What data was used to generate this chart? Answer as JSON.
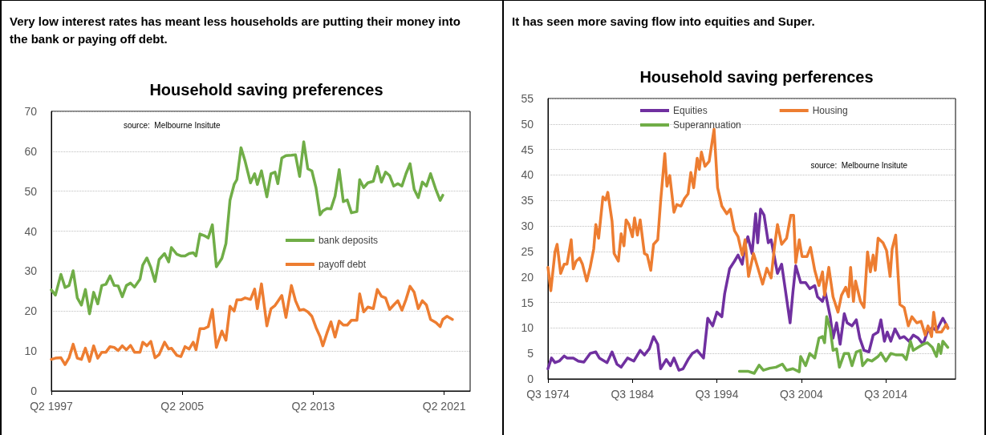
{
  "chart_data": [
    {
      "type": "line",
      "title": "Household saving preferences",
      "annotations": [
        "Very low interest rates has meant less households are putting their money into the bank or paying off debt.",
        "source:  Melbourne Insitute"
      ],
      "xlim": [
        "1997-04",
        "2022-11"
      ],
      "xticks": [
        {
          "value": "1997-04",
          "label": "Q2 1997"
        },
        {
          "value": "2005-04",
          "label": "Q2 2005"
        },
        {
          "value": "2013-04",
          "label": "Q2 2013"
        },
        {
          "value": "2021-04",
          "label": "Q2 2021"
        }
      ],
      "ylim": [
        0,
        70
      ],
      "yticks": [
        0,
        10,
        20,
        30,
        40,
        50,
        60,
        70
      ],
      "grid": "y",
      "legend": "right",
      "series": [
        {
          "name": "bank deposits",
          "color": "#70ad47",
          "x": [
            "1997-04",
            "1997-07",
            "1997-11",
            "1998-02",
            "1998-05",
            "1998-08",
            "1998-11",
            "1999-02",
            "1999-05",
            "1999-08",
            "1999-11",
            "2000-02",
            "2000-05",
            "2000-08",
            "2000-11",
            "2001-02",
            "2001-05",
            "2001-08",
            "2001-11",
            "2002-02",
            "2002-05",
            "2002-09",
            "2002-11",
            "2003-02",
            "2003-05",
            "2003-08",
            "2003-11",
            "2004-03",
            "2004-06",
            "2004-08",
            "2004-12",
            "2005-03",
            "2005-06",
            "2005-09",
            "2005-12",
            "2006-02",
            "2006-05",
            "2006-08",
            "2006-11",
            "2007-02",
            "2007-05",
            "2007-09",
            "2007-12",
            "2008-03",
            "2008-06",
            "2008-08",
            "2008-11",
            "2009-02",
            "2009-06",
            "2009-09",
            "2009-11",
            "2010-02",
            "2010-06",
            "2010-09",
            "2010-12",
            "2011-02",
            "2011-05",
            "2011-08",
            "2011-12",
            "2012-03",
            "2012-06",
            "2012-09",
            "2012-12",
            "2013-03",
            "2013-06",
            "2013-09",
            "2013-11",
            "2014-02",
            "2014-05",
            "2014-08",
            "2014-11",
            "2015-02",
            "2015-05",
            "2015-08",
            "2015-12",
            "2016-02",
            "2016-05",
            "2016-08",
            "2016-12",
            "2017-03",
            "2017-06",
            "2017-09",
            "2017-12",
            "2018-03",
            "2018-06",
            "2018-09",
            "2018-12",
            "2019-03",
            "2019-06",
            "2019-09",
            "2019-12",
            "2020-03",
            "2020-06",
            "2020-10",
            "2021-01",
            "2021-03"
          ],
          "values": [
            25.3,
            24,
            29.2,
            25.9,
            26.4,
            30.1,
            23.3,
            21.5,
            25.4,
            19.3,
            24.7,
            21.8,
            26.4,
            26.7,
            28.8,
            26.4,
            26.3,
            23.6,
            26.4,
            27,
            26,
            28,
            31.5,
            33.3,
            30.9,
            27.4,
            32.9,
            34.4,
            32.3,
            35.9,
            34.2,
            33.8,
            33.8,
            34.4,
            34.6,
            33.8,
            39.3,
            38.9,
            38.3,
            41.6,
            31.1,
            33.2,
            36.9,
            47.8,
            51.7,
            52.9,
            60.9,
            57.5,
            52.1,
            54.4,
            51.7,
            55.1,
            48.6,
            54.4,
            54.8,
            51.9,
            58.3,
            58.9,
            59,
            59.1,
            53.7,
            62.4,
            55.6,
            55.1,
            50.9,
            44.1,
            45.1,
            45.7,
            45.6,
            48.8,
            55.4,
            47.4,
            47.8,
            44.6,
            44.9,
            52.9,
            50.9,
            52.1,
            52.5,
            56.2,
            52.3,
            54.8,
            53.9,
            51.3,
            51.9,
            51.3,
            54.4,
            56.9,
            50.5,
            48.4,
            52.3,
            51.3,
            54.4,
            50.3,
            47.7,
            49
          ]
        },
        {
          "name": "payoff debt",
          "color": "#ed7d31",
          "x": [
            "1997-04",
            "1997-07",
            "1997-11",
            "1998-02",
            "1998-05",
            "1998-08",
            "1998-11",
            "1999-02",
            "1999-05",
            "1999-08",
            "1999-11",
            "2000-02",
            "2000-05",
            "2000-08",
            "2000-11",
            "2001-02",
            "2001-05",
            "2001-08",
            "2001-11",
            "2002-02",
            "2002-05",
            "2002-09",
            "2002-11",
            "2003-02",
            "2003-05",
            "2003-08",
            "2003-11",
            "2004-03",
            "2004-06",
            "2004-08",
            "2004-12",
            "2005-03",
            "2005-06",
            "2005-09",
            "2005-12",
            "2006-02",
            "2006-05",
            "2006-08",
            "2006-11",
            "2007-02",
            "2007-05",
            "2007-09",
            "2007-12",
            "2008-03",
            "2008-06",
            "2008-08",
            "2008-11",
            "2009-02",
            "2009-06",
            "2009-09",
            "2009-11",
            "2010-02",
            "2010-06",
            "2010-09",
            "2010-12",
            "2011-02",
            "2011-05",
            "2011-08",
            "2011-12",
            "2012-03",
            "2012-06",
            "2012-09",
            "2012-12",
            "2013-03",
            "2013-06",
            "2013-09",
            "2013-11",
            "2014-02",
            "2014-05",
            "2014-08",
            "2014-11",
            "2015-02",
            "2015-05",
            "2015-08",
            "2015-12",
            "2016-02",
            "2016-05",
            "2016-08",
            "2016-12",
            "2017-03",
            "2017-06",
            "2017-09",
            "2017-12",
            "2018-03",
            "2018-06",
            "2018-09",
            "2018-12",
            "2019-03",
            "2019-06",
            "2019-09",
            "2019-12",
            "2020-03",
            "2020-06",
            "2020-10",
            "2021-01",
            "2021-03",
            "2021-06",
            "2021-10"
          ],
          "values": [
            7.9,
            8.2,
            8.3,
            6.6,
            8.3,
            11.7,
            8.2,
            7.9,
            10.7,
            7.4,
            11.3,
            8.2,
            9.7,
            9.7,
            11.1,
            10.9,
            10.1,
            11.3,
            10.3,
            11.4,
            9.7,
            9.7,
            12.2,
            11.3,
            12.4,
            8.3,
            9.1,
            12.2,
            10.5,
            10.7,
            8.9,
            8.6,
            11.1,
            10.5,
            12.2,
            10.3,
            15.6,
            15.6,
            16.1,
            20.4,
            10.9,
            15,
            12.7,
            21.2,
            20,
            22.8,
            22.8,
            23.3,
            22.9,
            25.5,
            20.6,
            26.8,
            16.3,
            20.6,
            21.4,
            22.4,
            23.9,
            18.4,
            26.4,
            22.6,
            20.2,
            20.4,
            19.8,
            18.7,
            15.9,
            13.6,
            11.3,
            14.5,
            17.3,
            13.5,
            17.5,
            16.5,
            16.5,
            17.7,
            17.7,
            24.3,
            19.8,
            21,
            20.6,
            25.4,
            23.7,
            23.3,
            20.4,
            21.5,
            22.6,
            20.2,
            22.9,
            26.2,
            24.7,
            20.6,
            22.6,
            21.5,
            17.9,
            17.1,
            16.1,
            17.9,
            18.7,
            17.9
          ]
        }
      ]
    },
    {
      "type": "line",
      "title": "Household saving perferences",
      "annotations": [
        "It has seen more saving flow into equities and Super.",
        "source:  Melbourne Insitute"
      ],
      "xlim": [
        "1974-07",
        "2022-10"
      ],
      "xticks": [
        {
          "value": "1974-07",
          "label": "Q3 1974"
        },
        {
          "value": "1984-07",
          "label": "Q3 1984"
        },
        {
          "value": "1994-07",
          "label": "Q3 1994"
        },
        {
          "value": "2004-07",
          "label": "Q3 2004"
        },
        {
          "value": "2014-07",
          "label": "Q3 2014"
        }
      ],
      "ylim": [
        0,
        55
      ],
      "yticks": [
        0,
        5,
        10,
        15,
        20,
        25,
        30,
        35,
        40,
        45,
        50,
        55
      ],
      "grid": "y",
      "legend": "top",
      "series": [
        {
          "name": "Equities",
          "color": "#7030a0",
          "x": [
            "1974-07",
            "1974-12",
            "1975-05",
            "1975-11",
            "1976-06",
            "1976-10",
            "1977-07",
            "1978-02",
            "1978-10",
            "1979-07",
            "1980-03",
            "1980-08",
            "1981-07",
            "1982-02",
            "1982-09",
            "1983-03",
            "1983-12",
            "1984-09",
            "1985-06",
            "1985-12",
            "1986-07",
            "1987-01",
            "1987-07",
            "1987-11",
            "1988-07",
            "1989-01",
            "1989-06",
            "1990-01",
            "1990-07",
            "1991-02",
            "1991-08",
            "1992-03",
            "1992-12",
            "1993-06",
            "1994-01",
            "1994-07",
            "1995-02",
            "1995-06",
            "1996-01",
            "1996-08",
            "1997-01",
            "1997-07",
            "1997-11",
            "1998-03",
            "1998-09",
            "1999-02",
            "1999-05",
            "1999-09",
            "2000-02",
            "2000-08",
            "2000-12",
            "2001-05",
            "2001-09",
            "2002-03",
            "2002-08",
            "2003-03",
            "2003-07",
            "2003-11",
            "2004-06",
            "2005-01",
            "2005-07",
            "2006-02",
            "2006-06",
            "2007-01",
            "2007-05",
            "2007-12",
            "2008-04",
            "2008-09",
            "2009-02",
            "2009-08",
            "2009-12",
            "2010-07",
            "2011-01",
            "2011-06",
            "2011-12",
            "2012-07",
            "2013-01",
            "2013-08",
            "2013-12",
            "2014-05",
            "2014-09",
            "2015-02",
            "2015-08",
            "2016-03",
            "2016-09",
            "2017-04",
            "2017-10",
            "2018-05",
            "2018-12",
            "2019-06",
            "2020-01",
            "2020-07",
            "2021-04",
            "2021-11"
          ],
          "values": [
            2,
            4.1,
            3.2,
            3.5,
            4.5,
            4.1,
            4.1,
            3.5,
            3.3,
            5,
            5.3,
            4.1,
            3.2,
            5.3,
            2.9,
            2.3,
            4.1,
            3.5,
            5.6,
            4.7,
            5.9,
            8.3,
            6.8,
            2,
            3.8,
            2.6,
            4.1,
            1.7,
            2,
            3.8,
            5,
            5.6,
            4.1,
            11.9,
            10.4,
            13.1,
            12.2,
            16.7,
            21.6,
            23.1,
            24.3,
            22.5,
            26.1,
            27.9,
            24.6,
            32.4,
            26.7,
            33.3,
            32.1,
            26.7,
            27.3,
            23.7,
            20.7,
            22.5,
            17.7,
            11,
            17,
            22.2,
            18.9,
            18.9,
            17.7,
            18.3,
            16.1,
            15.2,
            17,
            12.2,
            8,
            11,
            6.8,
            12.8,
            11,
            10.4,
            11.6,
            8,
            5.6,
            5.3,
            8.6,
            9.2,
            11.6,
            7.4,
            9.2,
            7.4,
            9.8,
            8,
            8.3,
            7.4,
            8.6,
            8,
            6.8,
            9.2,
            10.1,
            9.5,
            11.9,
            10.1
          ]
        },
        {
          "name": "Housing",
          "color": "#ed7d31",
          "x": [
            "1974-07",
            "1974-11",
            "1975-05",
            "1975-08",
            "1976-01",
            "1976-06",
            "1976-10",
            "1977-04",
            "1977-07",
            "1977-11",
            "1978-04",
            "1978-08",
            "1979-02",
            "1979-07",
            "1979-12",
            "1980-03",
            "1980-07",
            "1981-01",
            "1981-05",
            "1981-08",
            "1982-02",
            "1982-05",
            "1982-11",
            "1983-03",
            "1983-07",
            "1983-10",
            "1984-02",
            "1984-07",
            "1984-10",
            "1985-02",
            "1985-06",
            "1985-12",
            "1986-04",
            "1986-09",
            "1987-01",
            "1987-07",
            "1987-11",
            "1988-05",
            "1988-08",
            "1988-12",
            "1989-06",
            "1989-10",
            "1990-04",
            "1990-09",
            "1991-02",
            "1991-06",
            "1991-10",
            "1992-03",
            "1992-06",
            "1992-09",
            "1993-02",
            "1993-08",
            "1994-03",
            "1994-08",
            "1995-02",
            "1995-09",
            "1996-02",
            "1996-08",
            "1997-01",
            "1997-07",
            "1997-11",
            "1998-04",
            "1998-11",
            "1999-05",
            "1999-12",
            "2000-06",
            "2000-12",
            "2001-05",
            "2001-09",
            "2002-03",
            "2002-10",
            "2003-04",
            "2003-08",
            "2003-11",
            "2004-04",
            "2004-08",
            "2005-03",
            "2005-08",
            "2006-02",
            "2006-08",
            "2007-01",
            "2007-04",
            "2007-10",
            "2008-04",
            "2008-11",
            "2009-04",
            "2009-10",
            "2010-02",
            "2010-05",
            "2010-09",
            "2010-12",
            "2011-07",
            "2011-12",
            "2012-05",
            "2012-09",
            "2013-01",
            "2013-04",
            "2013-08",
            "2014-03",
            "2014-08",
            "2015-01",
            "2015-04",
            "2015-09",
            "2016-03",
            "2016-09",
            "2017-03",
            "2017-08",
            "2018-03",
            "2018-09",
            "2019-03",
            "2019-07",
            "2019-12",
            "2020-03",
            "2020-07",
            "2021-02",
            "2021-09",
            "2021-11"
          ],
          "values": [
            21.9,
            17.3,
            24.9,
            26.4,
            20.7,
            22.5,
            22.5,
            27.3,
            21.6,
            23.1,
            23.7,
            22.5,
            19.2,
            21.9,
            25.5,
            30.3,
            27.6,
            35.7,
            35.1,
            36.6,
            30.9,
            24.6,
            23.1,
            28.5,
            26.1,
            31.2,
            30.3,
            27.9,
            31.6,
            28.2,
            31.2,
            24.6,
            24.3,
            21.3,
            26.4,
            27.3,
            34.8,
            44.2,
            37.8,
            39.9,
            32.7,
            34.2,
            33.9,
            35.4,
            36.3,
            40.5,
            37.5,
            43.3,
            41.1,
            44.5,
            41.7,
            42.7,
            49,
            37.5,
            33.9,
            32.4,
            33.3,
            29.1,
            27.9,
            24.3,
            27.3,
            20.1,
            24.6,
            21.9,
            18.6,
            21.7,
            19.8,
            26.1,
            30.3,
            26.4,
            27.6,
            32.1,
            32.1,
            22.8,
            27.3,
            24,
            24,
            25.8,
            21.3,
            18.3,
            21,
            16.4,
            21.9,
            16.1,
            13.1,
            16.4,
            18,
            16.1,
            21.9,
            15.2,
            19.2,
            15.2,
            14,
            24.9,
            21,
            24.3,
            21.3,
            27.6,
            26.7,
            25.2,
            20.1,
            25.5,
            28.2,
            14.6,
            14,
            10.4,
            12.2,
            11,
            11.3,
            8.6,
            10.4,
            8.3,
            13.1,
            9.2,
            9.2,
            10.7,
            9.9
          ]
        },
        {
          "name": "Superannuation",
          "color": "#70ad47",
          "x": [
            "1997-03",
            "1998-03",
            "1998-12",
            "1999-07",
            "2000-01",
            "2000-10",
            "2001-07",
            "2002-04",
            "2002-10",
            "2003-07",
            "2004-04",
            "2004-06",
            "2005-01",
            "2005-07",
            "2006-02",
            "2006-08",
            "2007-01",
            "2007-04",
            "2007-07",
            "2007-12",
            "2008-04",
            "2008-09",
            "2009-01",
            "2009-08",
            "2010-02",
            "2010-07",
            "2011-01",
            "2011-07",
            "2011-10",
            "2012-05",
            "2012-11",
            "2013-08",
            "2013-12",
            "2014-07",
            "2015-02",
            "2015-10",
            "2016-07",
            "2016-12",
            "2017-06",
            "2017-10",
            "2018-05",
            "2018-12",
            "2019-06",
            "2020-01",
            "2020-07",
            "2020-10",
            "2021-01",
            "2021-04",
            "2021-11"
          ],
          "values": [
            1.5,
            1.5,
            1.1,
            2.7,
            1.7,
            2.1,
            2.3,
            2.9,
            1.7,
            2,
            1.4,
            4.4,
            2.6,
            5,
            4.1,
            8,
            8.3,
            7.1,
            12.2,
            9.8,
            5.6,
            5.9,
            2.3,
            5,
            5,
            2.6,
            5.3,
            5.6,
            2.6,
            3.8,
            3.5,
            4.4,
            5.1,
            3.5,
            5,
            4.7,
            4.7,
            3.8,
            7.4,
            5.6,
            6.2,
            6.8,
            7.1,
            6.2,
            4.4,
            6.8,
            5,
            7.4,
            6.2
          ]
        }
      ]
    }
  ]
}
